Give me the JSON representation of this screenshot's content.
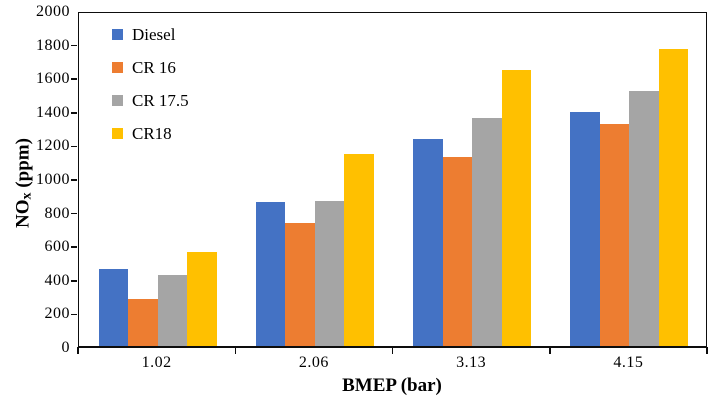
{
  "chart_data": {
    "type": "bar",
    "title": "",
    "xlabel": "BMEP (bar)",
    "ylabel": {
      "base": "NO",
      "sub": "x",
      "unit": " (ppm)"
    },
    "ylabel_text": "NOx (ppm)",
    "categories": [
      "1.02",
      "2.06",
      "3.13",
      "4.15"
    ],
    "series": [
      {
        "name": "Diesel",
        "color": "#4472C4",
        "values": [
          460,
          855,
          1235,
          1390
        ]
      },
      {
        "name": "CR 16",
        "color": "#ED7D31",
        "values": [
          280,
          730,
          1125,
          1320
        ]
      },
      {
        "name": "CR 17.5",
        "color": "#A5A5A5",
        "values": [
          420,
          865,
          1355,
          1515
        ]
      },
      {
        "name": "CR18",
        "color": "#FFC000",
        "values": [
          560,
          1140,
          1640,
          1770
        ]
      }
    ],
    "ylim": [
      0,
      2000
    ],
    "y_tick_step": 200,
    "y_ticks": [
      0,
      200,
      400,
      600,
      800,
      1000,
      1200,
      1400,
      1600,
      1800,
      2000
    ],
    "legend_position": "top-left-inside",
    "grid": false,
    "axis_color": "#0d0d0d",
    "plot_background": "#ffffff"
  }
}
